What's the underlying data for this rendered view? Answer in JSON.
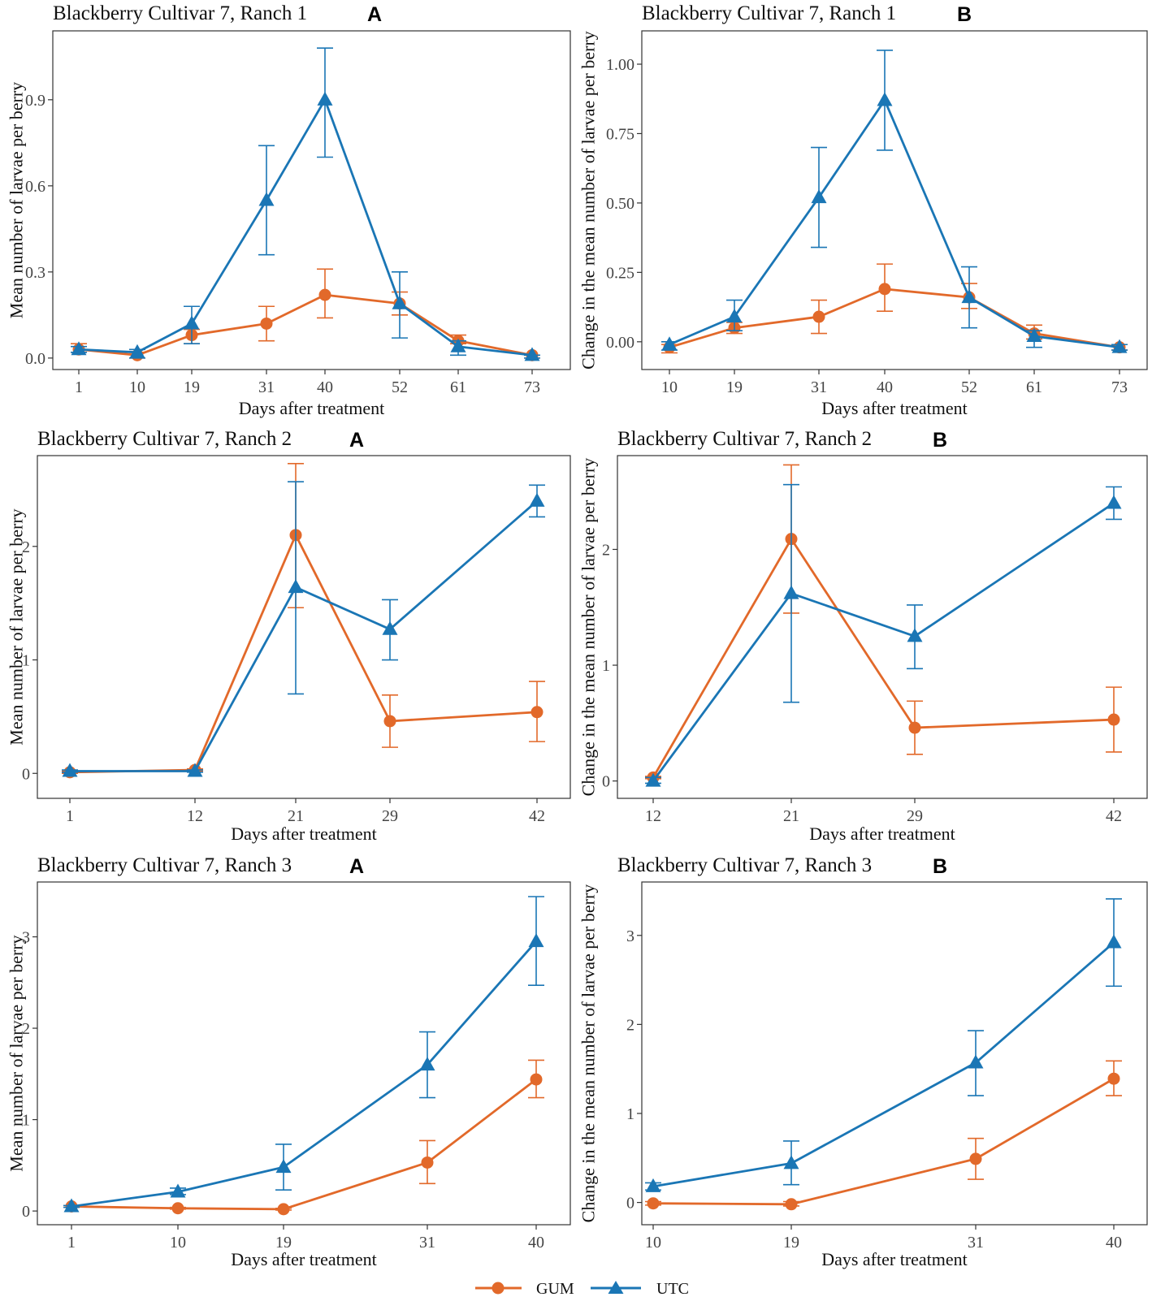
{
  "colors": {
    "GUM": "#e2692a",
    "UTC": "#1a76b5",
    "frame": "#333333"
  },
  "legend": {
    "items": [
      {
        "name": "GUM",
        "color": "#e2692a",
        "marker": "circle"
      },
      {
        "name": "UTC",
        "color": "#1a76b5",
        "marker": "triangle"
      }
    ]
  },
  "chart_data": [
    {
      "type": "line",
      "title": "Blackberry Cultivar 7, Ranch 1",
      "panel": "A",
      "xlabel": "Days after treatment",
      "ylabel": "Mean number of larvae per berry",
      "categories": [
        "1",
        "10",
        "19",
        "31",
        "40",
        "52",
        "61",
        "73"
      ],
      "ylim": [
        -0.04,
        1.14
      ],
      "yticks": [
        0.0,
        0.3,
        0.6,
        0.9
      ],
      "ytick_labels": [
        "0.0",
        "0.3",
        "0.6",
        "0.9"
      ],
      "series": [
        {
          "name": "GUM",
          "values": [
            0.03,
            0.01,
            0.08,
            0.12,
            0.22,
            0.19,
            0.06,
            0.01
          ],
          "lower": [
            0.02,
            0.0,
            0.05,
            0.06,
            0.14,
            0.15,
            0.05,
            0.0
          ],
          "upper": [
            0.05,
            0.02,
            0.1,
            0.18,
            0.31,
            0.23,
            0.08,
            0.01
          ]
        },
        {
          "name": "UTC",
          "values": [
            0.03,
            0.02,
            0.12,
            0.55,
            0.9,
            0.19,
            0.04,
            0.01
          ],
          "lower": [
            0.02,
            0.0,
            0.05,
            0.36,
            0.7,
            0.07,
            0.01,
            0.0
          ],
          "upper": [
            0.04,
            0.03,
            0.18,
            0.74,
            1.08,
            0.3,
            0.06,
            0.01
          ]
        }
      ]
    },
    {
      "type": "line",
      "title": "Blackberry Cultivar 7, Ranch 1",
      "panel": "B",
      "xlabel": "Days after treatment",
      "ylabel": "Change in the mean number of larvae per berry",
      "categories": [
        "10",
        "19",
        "31",
        "40",
        "52",
        "61",
        "73"
      ],
      "ylim": [
        -0.1,
        1.12
      ],
      "yticks": [
        0.0,
        0.25,
        0.5,
        0.75,
        1.0
      ],
      "ytick_labels": [
        "0.00",
        "0.25",
        "0.50",
        "0.75",
        "1.00"
      ],
      "series": [
        {
          "name": "GUM",
          "values": [
            -0.02,
            0.05,
            0.09,
            0.19,
            0.16,
            0.03,
            -0.02
          ],
          "lower": [
            -0.04,
            0.03,
            0.03,
            0.11,
            0.12,
            0.01,
            -0.03
          ],
          "upper": [
            -0.01,
            0.07,
            0.15,
            0.28,
            0.21,
            0.06,
            -0.01
          ]
        },
        {
          "name": "UTC",
          "values": [
            -0.01,
            0.09,
            0.52,
            0.87,
            0.16,
            0.02,
            -0.02
          ],
          "lower": [
            -0.03,
            0.04,
            0.34,
            0.69,
            0.05,
            -0.02,
            -0.03
          ],
          "upper": [
            0.0,
            0.15,
            0.7,
            1.05,
            0.27,
            0.04,
            -0.01
          ]
        }
      ]
    },
    {
      "type": "line",
      "title": "Blackberry Cultivar 7, Ranch 2",
      "panel": "A",
      "xlabel": "Days after treatment",
      "ylabel": "Mean number of larvae per berry",
      "categories": [
        "1",
        "12",
        "21",
        "29",
        "42"
      ],
      "ylim": [
        -0.22,
        2.8
      ],
      "yticks": [
        0,
        1,
        2
      ],
      "ytick_labels": [
        "0",
        "1",
        "2"
      ],
      "series": [
        {
          "name": "GUM",
          "values": [
            0.01,
            0.03,
            2.1,
            0.46,
            0.54
          ],
          "lower": [
            0.0,
            0.02,
            1.46,
            0.23,
            0.28
          ],
          "upper": [
            0.02,
            0.04,
            2.73,
            0.69,
            0.81
          ]
        },
        {
          "name": "UTC",
          "values": [
            0.02,
            0.02,
            1.64,
            1.27,
            2.4
          ],
          "lower": [
            0.01,
            0.01,
            0.7,
            1.0,
            2.26
          ],
          "upper": [
            0.03,
            0.03,
            2.57,
            1.53,
            2.54
          ]
        }
      ]
    },
    {
      "type": "line",
      "title": "Blackberry Cultivar 7, Ranch 2",
      "panel": "B",
      "xlabel": "Days after treatment",
      "ylabel": "Change in the mean number of larvae per berry",
      "categories": [
        "12",
        "21",
        "29",
        "42"
      ],
      "ylim": [
        -0.15,
        2.81
      ],
      "yticks": [
        0,
        1,
        2
      ],
      "ytick_labels": [
        "0",
        "1",
        "2"
      ],
      "series": [
        {
          "name": "GUM",
          "values": [
            0.03,
            2.09,
            0.46,
            0.53
          ],
          "lower": [
            0.02,
            1.45,
            0.23,
            0.25
          ],
          "upper": [
            0.04,
            2.73,
            0.69,
            0.81
          ]
        },
        {
          "name": "UTC",
          "values": [
            0.0,
            1.62,
            1.25,
            2.4
          ],
          "lower": [
            -0.02,
            0.68,
            0.97,
            2.26
          ],
          "upper": [
            0.03,
            2.56,
            1.52,
            2.54
          ]
        }
      ]
    },
    {
      "type": "line",
      "title": "Blackberry Cultivar 7, Ranch 3",
      "panel": "A",
      "xlabel": "Days after treatment",
      "ylabel": "Mean number of larvae per berry",
      "categories": [
        "1",
        "10",
        "19",
        "31",
        "40"
      ],
      "ylim": [
        -0.15,
        3.6
      ],
      "yticks": [
        0,
        1,
        2,
        3
      ],
      "ytick_labels": [
        "0",
        "1",
        "2",
        "3"
      ],
      "series": [
        {
          "name": "GUM",
          "values": [
            0.05,
            0.03,
            0.02,
            0.53,
            1.44
          ],
          "lower": [
            0.04,
            0.02,
            0.01,
            0.3,
            1.24
          ],
          "upper": [
            0.06,
            0.04,
            0.03,
            0.77,
            1.65
          ]
        },
        {
          "name": "UTC",
          "values": [
            0.05,
            0.21,
            0.48,
            1.6,
            2.95
          ],
          "lower": [
            0.04,
            0.18,
            0.23,
            1.24,
            2.47
          ],
          "upper": [
            0.06,
            0.25,
            0.73,
            1.96,
            3.44
          ]
        }
      ]
    },
    {
      "type": "line",
      "title": "Blackberry Cultivar 7, Ranch 3",
      "panel": "B",
      "xlabel": "Days after treatment",
      "ylabel": "Change in the mean number of larvae per berry",
      "categories": [
        "10",
        "19",
        "31",
        "40"
      ],
      "ylim": [
        -0.25,
        3.6
      ],
      "yticks": [
        0,
        1,
        2,
        3
      ],
      "ytick_labels": [
        "0",
        "1",
        "2",
        "3"
      ],
      "series": [
        {
          "name": "GUM",
          "values": [
            -0.01,
            -0.02,
            0.49,
            1.39
          ],
          "lower": [
            -0.03,
            -0.04,
            0.26,
            1.2
          ],
          "upper": [
            0.01,
            0.01,
            0.72,
            1.59
          ]
        },
        {
          "name": "UTC",
          "values": [
            0.18,
            0.44,
            1.57,
            2.92
          ],
          "lower": [
            0.14,
            0.2,
            1.2,
            2.43
          ],
          "upper": [
            0.22,
            0.69,
            1.93,
            3.41
          ]
        }
      ]
    }
  ]
}
